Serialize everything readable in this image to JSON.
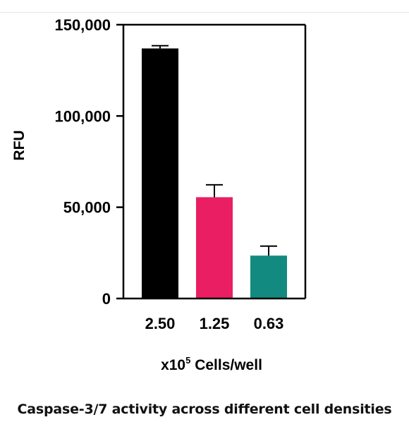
{
  "chart_data": {
    "type": "bar",
    "categories": [
      "2.50",
      "1.25",
      "0.63"
    ],
    "values": [
      137000,
      55500,
      23500
    ],
    "errors": [
      1500,
      6800,
      5200
    ],
    "colors": [
      "#000000",
      "#e91e63",
      "#138a7f"
    ],
    "ylabel": "RFU",
    "xlabel_prefix": "x10",
    "xlabel_superscript": "5",
    "xlabel_suffix": " Cells/well",
    "ylim": [
      0,
      150000
    ],
    "yticks": [
      0,
      50000,
      100000,
      150000
    ],
    "ytick_labels": [
      "0",
      "50,000",
      "100,000",
      "150,000"
    ],
    "grid": false
  },
  "caption": "Caspase-3/7 activity across different cell densities"
}
